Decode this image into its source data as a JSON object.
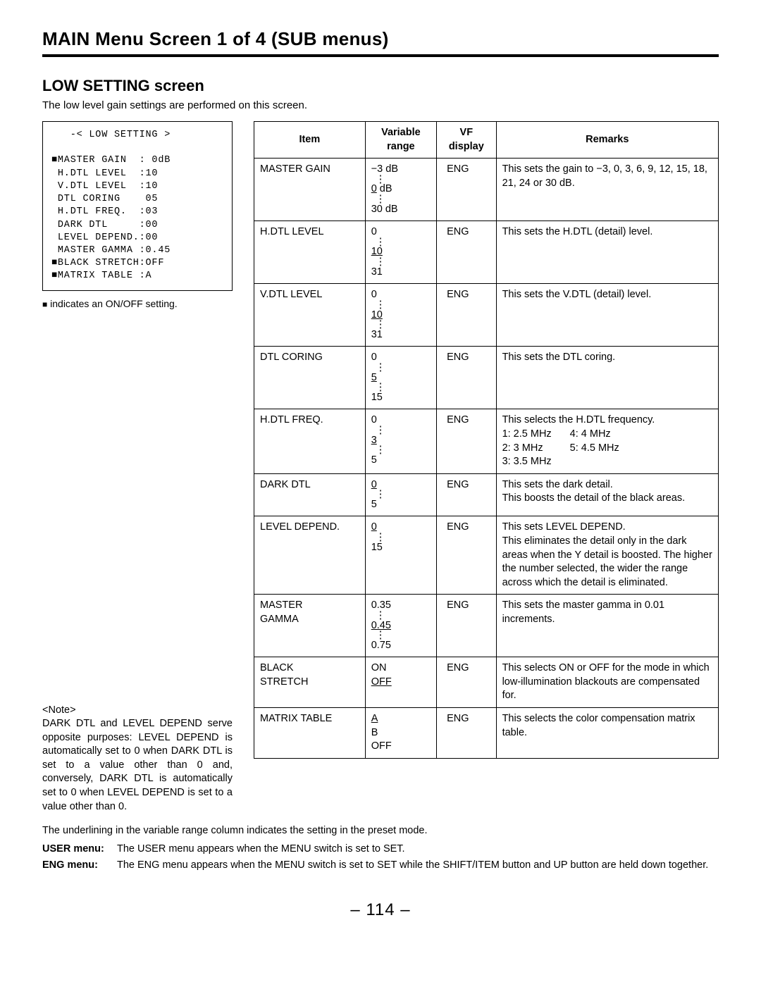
{
  "page_title": "MAIN Menu Screen 1 of 4 (SUB menus)",
  "screen_title": "LOW SETTING screen",
  "screen_desc": "The low level gain settings are performed on this screen.",
  "lcd": {
    "header": "-< LOW SETTING >",
    "lines": [
      "■MASTER GAIN  : 0dB",
      " H.DTL LEVEL  :10",
      " V.DTL LEVEL  :10",
      " DTL CORING    05",
      " H.DTL FREQ.  :03",
      " DARK DTL     :00",
      " LEVEL DEPEND.:00",
      " MASTER GAMMA :0.45",
      "■BLACK STRETCH:OFF",
      "■MATRIX TABLE :A"
    ],
    "legend": "■ indicates an ON/OFF setting."
  },
  "note": {
    "heading": "<Note>",
    "body": "DARK DTL and LEVEL DEPEND serve opposite purposes: LEVEL DEPEND is automatically set to 0 when DARK DTL is set to a value other than 0 and, conversely, DARK DTL is automatically set to 0 when LEVEL DEPEND is set to a value other than 0."
  },
  "table": {
    "headers": {
      "item": "Item",
      "range": "Variable range",
      "vf": "VF display",
      "remarks": "Remarks"
    },
    "rows": [
      {
        "item": "MASTER GAIN",
        "range_top": "−3 dB",
        "range_mid": "0 dB",
        "range_bot": "30 dB",
        "range_mid_underlined": "0",
        "range_mid_suffix": " dB",
        "show_dots": true,
        "vf": "ENG",
        "remarks": "This sets the gain to −3, 0, 3, 6, 9, 12, 15, 18, 21, 24 or 30 dB."
      },
      {
        "item": "H.DTL LEVEL",
        "range_top": "0",
        "range_mid_underlined": "10",
        "range_bot": "31",
        "show_dots": true,
        "vf": "ENG",
        "remarks": "This sets the H.DTL (detail) level."
      },
      {
        "item": "V.DTL LEVEL",
        "range_top": "0",
        "range_mid_underlined": "10",
        "range_bot": "31",
        "show_dots": true,
        "vf": "ENG",
        "remarks": "This sets the V.DTL (detail) level."
      },
      {
        "item": "DTL CORING",
        "range_top": "0",
        "range_mid_underlined": "5",
        "range_bot": "15",
        "show_dots": true,
        "vf": "ENG",
        "remarks": "This sets the DTL coring."
      },
      {
        "item": "H.DTL FREQ.",
        "range_top": "0",
        "range_mid_underlined": "3",
        "range_bot": "5",
        "show_dots": true,
        "vf": "ENG",
        "remarks": "This selects the H.DTL frequency.",
        "freq_list": {
          "c1": [
            "1: 2.5 MHz",
            "2: 3 MHz",
            "3: 3.5 MHz"
          ],
          "c2": [
            "4: 4 MHz",
            "5: 4.5 MHz"
          ]
        }
      },
      {
        "item": "DARK DTL",
        "range_top_underlined": "0",
        "range_bot": "5",
        "show_dots_single": true,
        "vf": "ENG",
        "remarks": "This sets the dark detail.\nThis boosts the detail of the black areas."
      },
      {
        "item": "LEVEL DEPEND.",
        "range_top_underlined": "0",
        "range_bot": "15",
        "show_dots_single": true,
        "vf": "ENG",
        "remarks": "This sets LEVEL DEPEND.\nThis eliminates the detail only in the dark areas when the Y detail is boosted. The higher the number selected, the wider the range across which the detail is eliminated."
      },
      {
        "item": "MASTER GAMMA",
        "range_top": "0.35",
        "range_mid_underlined": "0.45",
        "range_bot": "0.75",
        "show_dots": true,
        "vf": "ENG",
        "remarks": "This sets the master gamma in 0.01 increments."
      },
      {
        "item": "BLACK STRETCH",
        "range_lines": [
          {
            "t": "ON"
          },
          {
            "t": "OFF",
            "u": true
          }
        ],
        "vf": "ENG",
        "remarks": "This selects ON or OFF for the mode in which low-illumination blackouts are compensated for."
      },
      {
        "item": "MATRIX TABLE",
        "range_lines": [
          {
            "t": "A",
            "u": true
          },
          {
            "t": "B"
          },
          {
            "t": "OFF"
          }
        ],
        "vf": "ENG",
        "remarks": "This selects the color compensation matrix table."
      }
    ]
  },
  "footer": {
    "underline_note": "The underlining in the variable range column indicates the setting in the preset mode.",
    "user_menu_label": "USER menu:",
    "user_menu_text": "The USER menu appears when the MENU switch is set to SET.",
    "eng_menu_label": "ENG menu:",
    "eng_menu_text": "The ENG menu appears when the MENU switch is set to SET while the SHIFT/ITEM button and UP button are held down together."
  },
  "page_number": "– 114 –"
}
